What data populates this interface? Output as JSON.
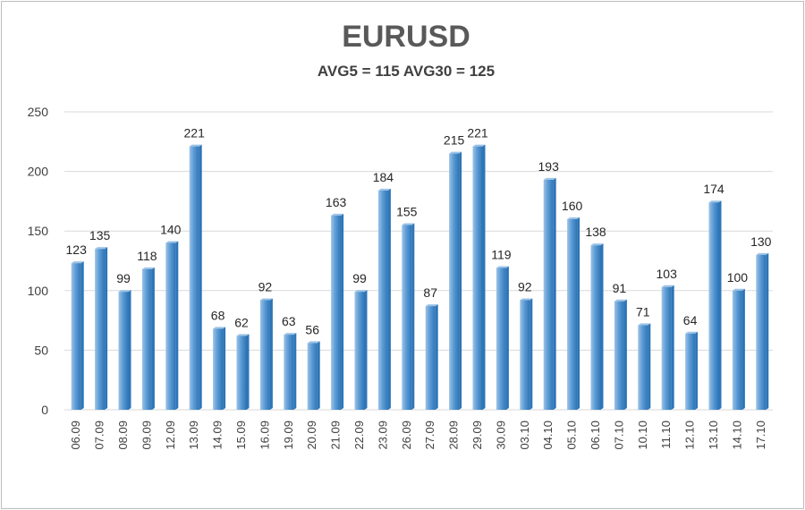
{
  "chart_data": {
    "type": "bar",
    "title": "EURUSD",
    "subtitle": "AVG5 = 115 AVG30 = 125",
    "categories": [
      "06.09",
      "07.09",
      "08.09",
      "09.09",
      "12.09",
      "13.09",
      "14.09",
      "15.09",
      "16.09",
      "19.09",
      "20.09",
      "21.09",
      "22.09",
      "23.09",
      "26.09",
      "27.09",
      "28.09",
      "29.09",
      "30.09",
      "03.10",
      "04.10",
      "05.10",
      "06.10",
      "07.10",
      "10.10",
      "11.10",
      "12.10",
      "13.10",
      "14.10",
      "17.10"
    ],
    "values": [
      123,
      135,
      99,
      118,
      140,
      221,
      68,
      62,
      92,
      63,
      56,
      163,
      99,
      184,
      155,
      87,
      215,
      221,
      119,
      92,
      193,
      160,
      138,
      91,
      71,
      103,
      64,
      174,
      100,
      130
    ],
    "ylim": [
      0,
      250
    ],
    "yticks": [
      0,
      50,
      100,
      150,
      200,
      250
    ],
    "grid": true,
    "legend": "none",
    "colors": {
      "bar": "#5b9bd5",
      "bar_dark": "#2e75b6",
      "bar_light": "#9dc3e6"
    }
  }
}
